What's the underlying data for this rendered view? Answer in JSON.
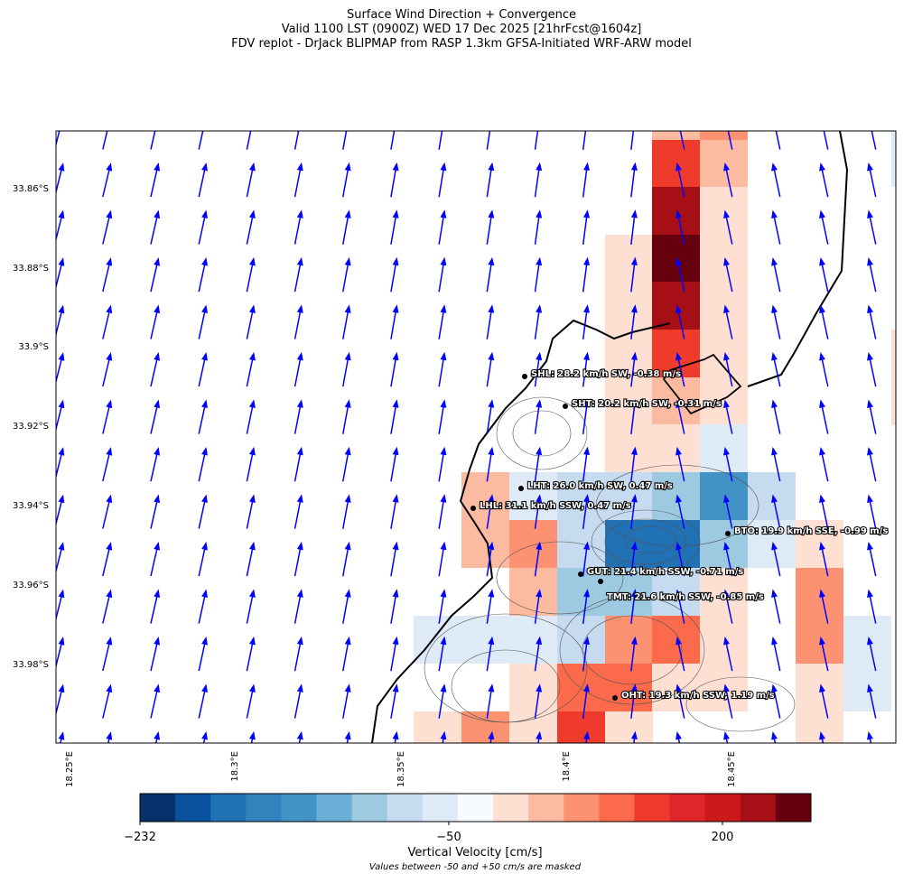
{
  "header": {
    "title": [
      "Surface Wind Direction + Convergence",
      "Valid 1100 LST (0900Z) WED 17 Dec 2025 [21hrFcst@1604z]",
      "FDV replot - DrJack BLIPMAP from RASP 1.3km GFSA-Initiated WRF-ARW model"
    ]
  },
  "map": {
    "lat_ticks": [
      "33.86°S",
      "33.88°S",
      "33.9°S",
      "33.92°S",
      "33.94°S",
      "33.96°S",
      "33.98°S"
    ],
    "lon_ticks": [
      "18.25°E",
      "18.3°E",
      "18.35°E",
      "18.4°E",
      "18.45°E"
    ],
    "stations": [
      {
        "label": "SHL: 28.2 km/h SW, -0.38 m/s"
      },
      {
        "label": "SHT: 20.2 km/h SW, -0.31 m/s"
      },
      {
        "label": "LHT: 26.0 km/h SW, 0.47 m/s"
      },
      {
        "label": "LHL: 31.1 km/h SSW, 0.47 m/s"
      },
      {
        "label": "BTO: 19.9 km/h SSE, -0.99 m/s"
      },
      {
        "label": "GUT: 21.4 km/h SSW, -0.71 m/s"
      },
      {
        "label": "TMT: 21.6 km/h SSW, -0.85 m/s"
      },
      {
        "label": "OHT: 19.3 km/h SSW, 1.19 m/s"
      }
    ],
    "arrow_color": "#0000ff"
  },
  "colorbar": {
    "ticks": [
      "−232",
      "−50",
      "200"
    ],
    "label": "Vertical Velocity [cm/s]",
    "note": "Values between -50 and +50 cm/s are masked",
    "colors": [
      "#08306b",
      "#08519c",
      "#2171b5",
      "#3282bd",
      "#4292c6",
      "#6baed6",
      "#9ecae1",
      "#c6dbef",
      "#deebf7",
      "#f7fbff",
      "#fee0d2",
      "#fcbba1",
      "#fc9272",
      "#fb6a4a",
      "#ef3b2c",
      "#e0262b",
      "#cb181d",
      "#a50f15",
      "#67000d"
    ]
  }
}
